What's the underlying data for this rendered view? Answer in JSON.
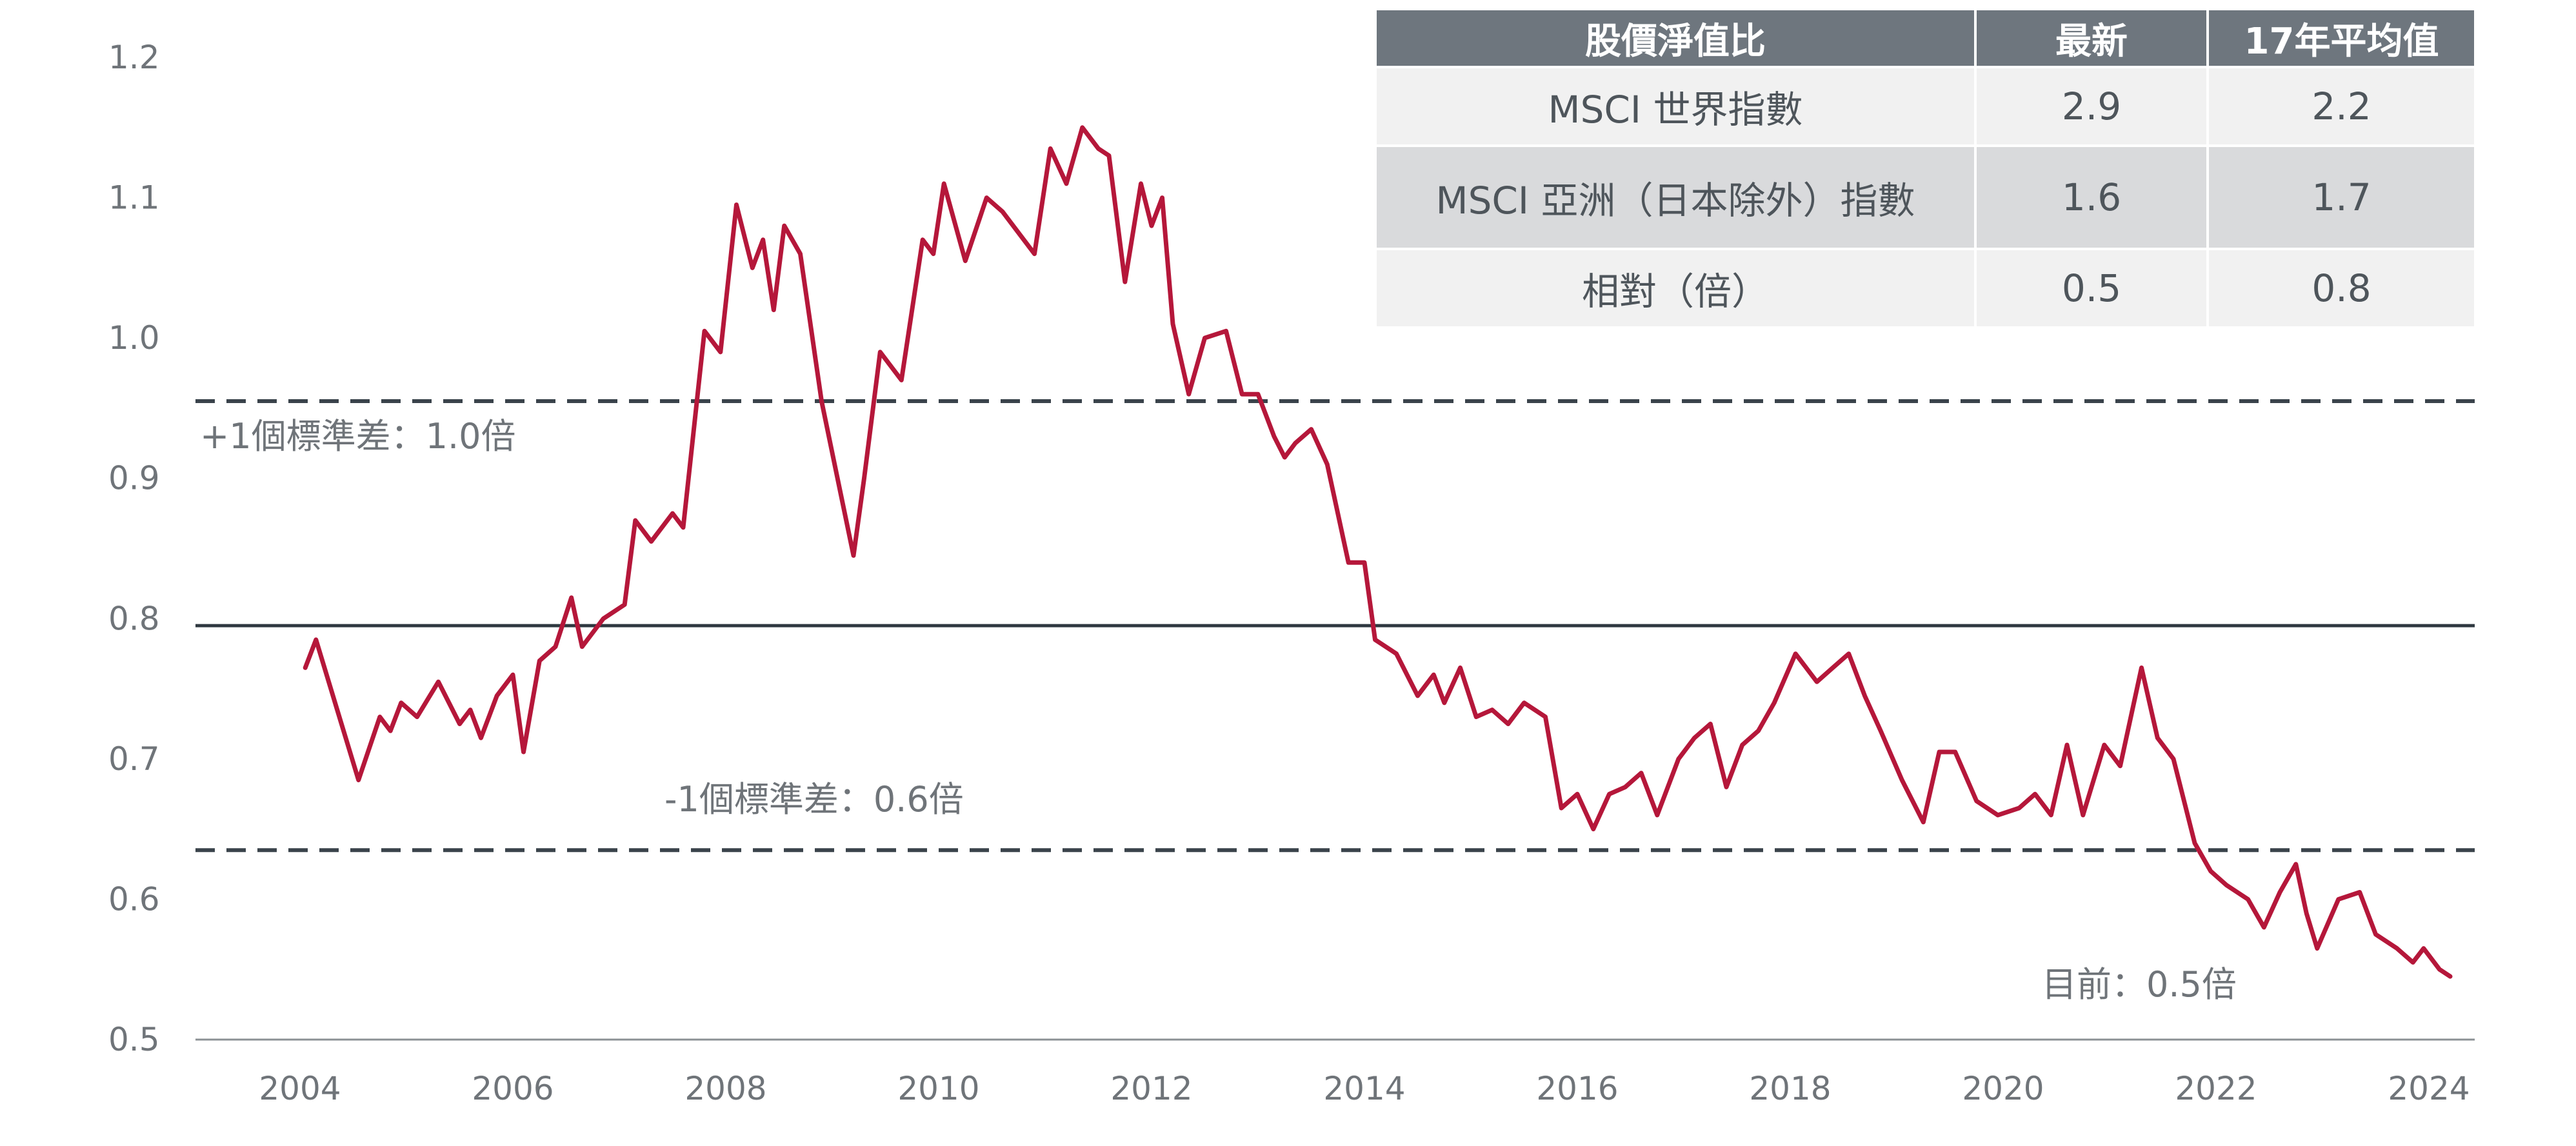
{
  "chart_data": {
    "type": "line",
    "title": "",
    "xlabel": "",
    "ylabel": "",
    "ylim": [
      0.5,
      1.2
    ],
    "xlim": [
      2003.0,
      2024.3
    ],
    "y_ticks": [
      "1.2",
      "1.1",
      "1.0",
      "0.9",
      "0.8",
      "0.7",
      "0.6",
      "0.5"
    ],
    "y_tick_values": [
      1.2,
      1.1,
      1.0,
      0.9,
      0.8,
      0.7,
      0.6,
      0.5
    ],
    "x_ticks": [
      "2004",
      "2006",
      "2008",
      "2010",
      "2012",
      "2014",
      "2016",
      "2018",
      "2020",
      "2022",
      "2024"
    ],
    "x_tick_values": [
      2004,
      2006,
      2008,
      2010,
      2012,
      2014,
      2016,
      2018,
      2020,
      2022,
      2024
    ],
    "grid": false,
    "reference_lines": [
      {
        "value": 0.955,
        "style": "dashed",
        "label": "+1個標準差：1.0倍"
      },
      {
        "value": 0.795,
        "style": "solid",
        "label": ""
      },
      {
        "value": 0.635,
        "style": "dashed",
        "label": "-1個標準差：0.6倍"
      }
    ],
    "annotation_current": "目前：0.5倍",
    "series": [
      {
        "color": "#b5173a",
        "x": [
          2004.05,
          2004.15,
          2004.35,
          2004.55,
          2004.75,
          2004.85,
          2004.95,
          2005.1,
          2005.3,
          2005.5,
          2005.6,
          2005.7,
          2005.85,
          2006.0,
          2006.1,
          2006.25,
          2006.4,
          2006.55,
          2006.65,
          2006.85,
          2007.05,
          2007.15,
          2007.3,
          2007.5,
          2007.6,
          2007.8,
          2007.95,
          2008.1,
          2008.25,
          2008.35,
          2008.45,
          2008.55,
          2008.7,
          2008.9,
          2009.05,
          2009.2,
          2009.3,
          2009.45,
          2009.65,
          2009.85,
          2009.95,
          2010.05,
          2010.25,
          2010.45,
          2010.6,
          2010.75,
          2010.9,
          2011.05,
          2011.2,
          2011.35,
          2011.5,
          2011.6,
          2011.75,
          2011.9,
          2012.0,
          2012.1,
          2012.2,
          2012.35,
          2012.5,
          2012.7,
          2012.85,
          2013.0,
          2013.15,
          2013.25,
          2013.35,
          2013.5,
          2013.65,
          2013.85,
          2014.0,
          2014.1,
          2014.3,
          2014.5,
          2014.65,
          2014.75,
          2014.9,
          2015.05,
          2015.2,
          2015.35,
          2015.5,
          2015.7,
          2015.85,
          2016.0,
          2016.15,
          2016.3,
          2016.45,
          2016.6,
          2016.75,
          2016.95,
          2017.1,
          2017.25,
          2017.4,
          2017.55,
          2017.7,
          2017.85,
          2018.05,
          2018.25,
          2018.4,
          2018.55,
          2018.7,
          2018.85,
          2019.05,
          2019.25,
          2019.4,
          2019.55,
          2019.75,
          2019.95,
          2020.15,
          2020.3,
          2020.45,
          2020.6,
          2020.75,
          2020.95,
          2021.1,
          2021.3,
          2021.45,
          2021.6,
          2021.8,
          2021.95,
          2022.1,
          2022.3,
          2022.45,
          2022.6,
          2022.75,
          2022.85,
          2022.95,
          2023.15,
          2023.35,
          2023.5,
          2023.7,
          2023.85,
          2023.95,
          2024.1,
          2024.2
        ],
        "y": [
          0.765,
          0.785,
          0.735,
          0.685,
          0.73,
          0.72,
          0.74,
          0.73,
          0.755,
          0.725,
          0.735,
          0.715,
          0.745,
          0.76,
          0.705,
          0.77,
          0.78,
          0.815,
          0.78,
          0.8,
          0.81,
          0.87,
          0.855,
          0.875,
          0.865,
          1.005,
          0.99,
          1.095,
          1.05,
          1.07,
          1.02,
          1.08,
          1.06,
          0.955,
          0.9,
          0.845,
          0.9,
          0.99,
          0.97,
          1.07,
          1.06,
          1.11,
          1.055,
          1.1,
          1.09,
          1.075,
          1.06,
          1.135,
          1.11,
          1.15,
          1.135,
          1.13,
          1.04,
          1.11,
          1.08,
          1.1,
          1.01,
          0.96,
          1.0,
          1.005,
          0.96,
          0.96,
          0.93,
          0.915,
          0.925,
          0.935,
          0.91,
          0.84,
          0.84,
          0.785,
          0.775,
          0.745,
          0.76,
          0.74,
          0.765,
          0.73,
          0.735,
          0.725,
          0.74,
          0.73,
          0.665,
          0.675,
          0.65,
          0.675,
          0.68,
          0.69,
          0.66,
          0.7,
          0.715,
          0.725,
          0.68,
          0.71,
          0.72,
          0.74,
          0.775,
          0.755,
          0.765,
          0.775,
          0.745,
          0.72,
          0.685,
          0.655,
          0.705,
          0.705,
          0.67,
          0.66,
          0.665,
          0.675,
          0.66,
          0.71,
          0.66,
          0.71,
          0.695,
          0.765,
          0.715,
          0.7,
          0.64,
          0.62,
          0.61,
          0.6,
          0.58,
          0.605,
          0.625,
          0.59,
          0.565,
          0.6,
          0.605,
          0.575,
          0.565,
          0.555,
          0.565,
          0.55,
          0.545
        ]
      }
    ]
  },
  "table": {
    "headers": [
      "股價淨值比",
      "最新",
      "17年平均值"
    ],
    "rows": [
      [
        "MSCI 世界指數",
        "2.9",
        "2.2"
      ],
      [
        "MSCI 亞洲（日本除外）指數",
        "1.6",
        "1.7"
      ],
      [
        "相對（倍）",
        "0.5",
        "0.8"
      ]
    ]
  }
}
